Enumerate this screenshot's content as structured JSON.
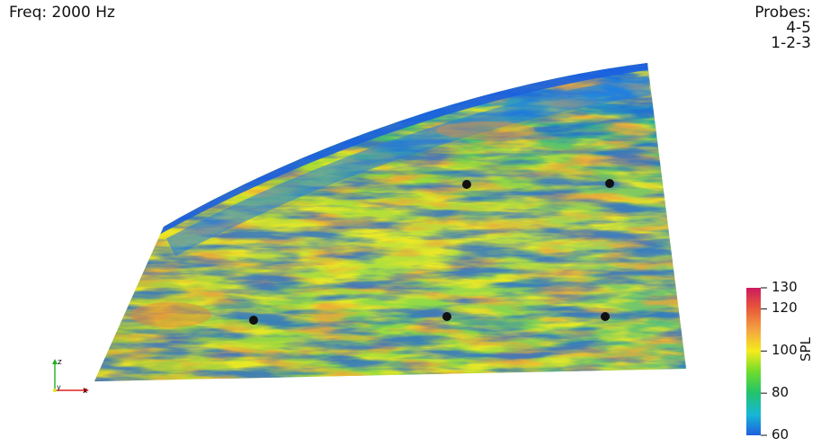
{
  "header": {
    "frequency": "Freq: 2000 Hz"
  },
  "probes": {
    "title": "Probes:",
    "rows": [
      "4-5",
      "1-2-3"
    ],
    "markers": [
      "1",
      "2",
      "3",
      "4",
      "5"
    ]
  },
  "colorbar": {
    "title": "SPL",
    "range": [
      60,
      130
    ],
    "ticks": [
      "130",
      "120",
      "100",
      "80",
      "60"
    ],
    "tick_values": [
      130,
      120,
      100,
      80,
      60
    ],
    "colors": [
      "#1f5fe0",
      "#16b7d6",
      "#22c46a",
      "#6edc2b",
      "#f5ec1c",
      "#f4a640",
      "#e8593a",
      "#cd1a5e"
    ]
  },
  "axes_triad": {
    "x": "x",
    "y": "y",
    "z": "z",
    "colors": {
      "x": "#e02020",
      "y": "#e0e020",
      "z": "#20b020"
    }
  },
  "surface": {
    "colors": {
      "low": "#1a5fe0",
      "mid": "#35c860",
      "high": "#f0e31f",
      "hot": "#e9803c"
    }
  }
}
